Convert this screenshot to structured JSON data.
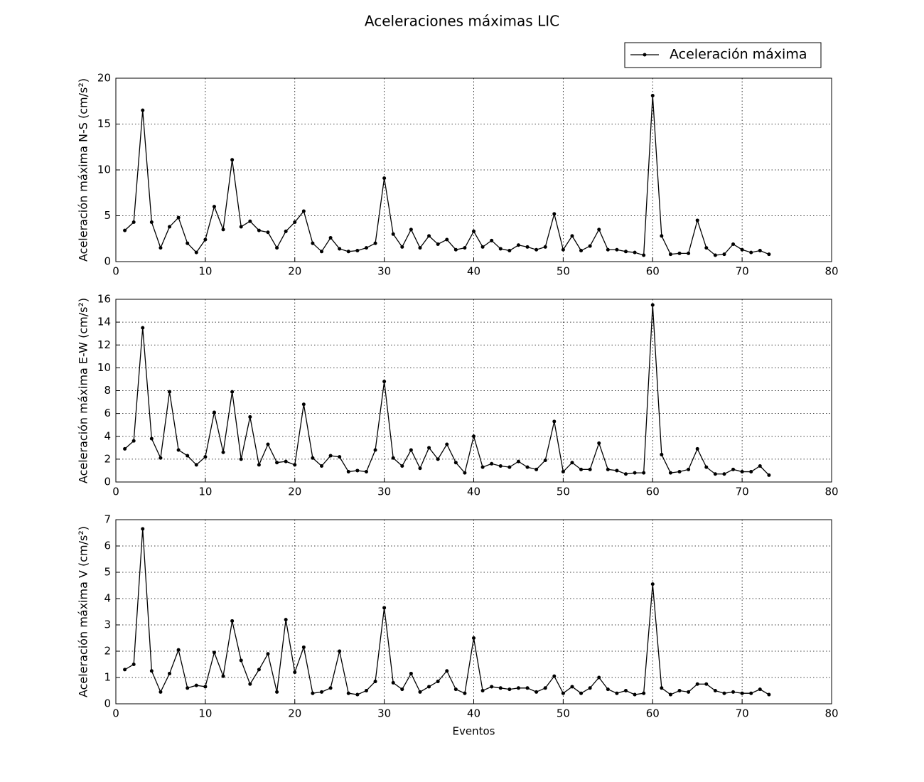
{
  "title": "Aceleraciones máximas LIC",
  "chart_data": [
    {
      "type": "line",
      "ylabel": "Aceleración máxima N-S (cm/s²)",
      "legend": "upper right",
      "grid": true,
      "xlim": [
        0,
        80
      ],
      "xticks": [
        0,
        10,
        20,
        30,
        40,
        50,
        60,
        70,
        80
      ],
      "ylim": [
        0,
        20
      ],
      "yticks": [
        0,
        5,
        10,
        15,
        20
      ],
      "x": [
        1,
        2,
        3,
        4,
        5,
        6,
        7,
        8,
        9,
        10,
        11,
        12,
        13,
        14,
        15,
        16,
        17,
        18,
        19,
        20,
        21,
        22,
        23,
        24,
        25,
        26,
        27,
        28,
        29,
        30,
        31,
        32,
        33,
        34,
        35,
        36,
        37,
        38,
        39,
        40,
        41,
        42,
        43,
        44,
        45,
        46,
        47,
        48,
        49,
        50,
        51,
        52,
        53,
        54,
        55,
        56,
        57,
        58,
        59,
        60,
        61,
        62,
        63,
        64,
        65,
        66,
        67,
        68,
        69,
        70,
        71,
        72,
        73
      ],
      "series": [
        {
          "name": "Aceleración máxima",
          "color": "#000000",
          "values": [
            3.4,
            4.3,
            16.5,
            4.3,
            1.5,
            3.8,
            4.8,
            2.0,
            1.0,
            2.4,
            6.0,
            3.5,
            11.1,
            3.8,
            4.4,
            3.4,
            3.2,
            1.5,
            3.3,
            4.3,
            5.5,
            2.0,
            1.1,
            2.6,
            1.4,
            1.1,
            1.2,
            1.5,
            2.0,
            9.1,
            3.0,
            1.6,
            3.5,
            1.5,
            2.8,
            1.9,
            2.4,
            1.3,
            1.5,
            3.3,
            1.6,
            2.3,
            1.4,
            1.2,
            1.8,
            1.6,
            1.3,
            1.6,
            5.2,
            1.3,
            2.8,
            1.2,
            1.7,
            3.5,
            1.3,
            1.3,
            1.1,
            1.0,
            0.7,
            18.1,
            2.8,
            0.8,
            0.9,
            0.9,
            4.5,
            1.5,
            0.7,
            0.8,
            1.9,
            1.3,
            1.0,
            1.2,
            0.8
          ]
        }
      ]
    },
    {
      "type": "line",
      "ylabel": "Aceleración máxima E-W (cm/s²)",
      "grid": true,
      "xlim": [
        0,
        80
      ],
      "xticks": [
        0,
        10,
        20,
        30,
        40,
        50,
        60,
        70,
        80
      ],
      "ylim": [
        0,
        16
      ],
      "yticks": [
        0,
        2,
        4,
        6,
        8,
        10,
        12,
        14,
        16
      ],
      "x": [
        1,
        2,
        3,
        4,
        5,
        6,
        7,
        8,
        9,
        10,
        11,
        12,
        13,
        14,
        15,
        16,
        17,
        18,
        19,
        20,
        21,
        22,
        23,
        24,
        25,
        26,
        27,
        28,
        29,
        30,
        31,
        32,
        33,
        34,
        35,
        36,
        37,
        38,
        39,
        40,
        41,
        42,
        43,
        44,
        45,
        46,
        47,
        48,
        49,
        50,
        51,
        52,
        53,
        54,
        55,
        56,
        57,
        58,
        59,
        60,
        61,
        62,
        63,
        64,
        65,
        66,
        67,
        68,
        69,
        70,
        71,
        72,
        73
      ],
      "series": [
        {
          "color": "#000000",
          "values": [
            2.9,
            3.6,
            13.5,
            3.8,
            2.1,
            7.9,
            2.8,
            2.3,
            1.5,
            2.2,
            6.1,
            2.6,
            7.9,
            2.0,
            5.7,
            1.5,
            3.3,
            1.7,
            1.8,
            1.5,
            6.8,
            2.1,
            1.4,
            2.3,
            2.2,
            0.9,
            1.0,
            0.9,
            2.8,
            8.8,
            2.1,
            1.4,
            2.8,
            1.2,
            3.0,
            2.0,
            3.3,
            1.7,
            0.8,
            4.0,
            1.3,
            1.6,
            1.4,
            1.3,
            1.8,
            1.3,
            1.1,
            1.9,
            5.3,
            0.9,
            1.7,
            1.1,
            1.1,
            3.4,
            1.1,
            1.0,
            0.7,
            0.8,
            0.8,
            15.5,
            2.4,
            0.8,
            0.9,
            1.1,
            2.9,
            1.3,
            0.7,
            0.7,
            1.1,
            0.9,
            0.9,
            1.4,
            0.6
          ]
        }
      ]
    },
    {
      "type": "line",
      "ylabel": "Aceleración máxima V (cm/s²)",
      "xlabel": "Eventos",
      "grid": true,
      "xlim": [
        0,
        80
      ],
      "xticks": [
        0,
        10,
        20,
        30,
        40,
        50,
        60,
        70,
        80
      ],
      "ylim": [
        0,
        7
      ],
      "yticks": [
        0,
        1,
        2,
        3,
        4,
        5,
        6,
        7
      ],
      "x": [
        1,
        2,
        3,
        4,
        5,
        6,
        7,
        8,
        9,
        10,
        11,
        12,
        13,
        14,
        15,
        16,
        17,
        18,
        19,
        20,
        21,
        22,
        23,
        24,
        25,
        26,
        27,
        28,
        29,
        30,
        31,
        32,
        33,
        34,
        35,
        36,
        37,
        38,
        39,
        40,
        41,
        42,
        43,
        44,
        45,
        46,
        47,
        48,
        49,
        50,
        51,
        52,
        53,
        54,
        55,
        56,
        57,
        58,
        59,
        60,
        61,
        62,
        63,
        64,
        65,
        66,
        67,
        68,
        69,
        70,
        71,
        72,
        73
      ],
      "series": [
        {
          "color": "#000000",
          "values": [
            1.3,
            1.5,
            6.65,
            1.25,
            0.45,
            1.15,
            2.05,
            0.6,
            0.7,
            0.65,
            1.95,
            1.05,
            3.15,
            1.65,
            0.75,
            1.3,
            1.9,
            0.45,
            3.2,
            1.2,
            2.15,
            0.4,
            0.45,
            0.6,
            2.0,
            0.4,
            0.35,
            0.5,
            0.85,
            3.65,
            0.8,
            0.55,
            1.15,
            0.45,
            0.65,
            0.85,
            1.25,
            0.55,
            0.4,
            2.5,
            0.5,
            0.65,
            0.6,
            0.55,
            0.6,
            0.6,
            0.45,
            0.6,
            1.05,
            0.4,
            0.65,
            0.4,
            0.6,
            1.0,
            0.55,
            0.4,
            0.5,
            0.35,
            0.4,
            4.55,
            0.6,
            0.35,
            0.5,
            0.45,
            0.75,
            0.75,
            0.5,
            0.4,
            0.45,
            0.4,
            0.4,
            0.55,
            0.35
          ]
        }
      ]
    }
  ]
}
